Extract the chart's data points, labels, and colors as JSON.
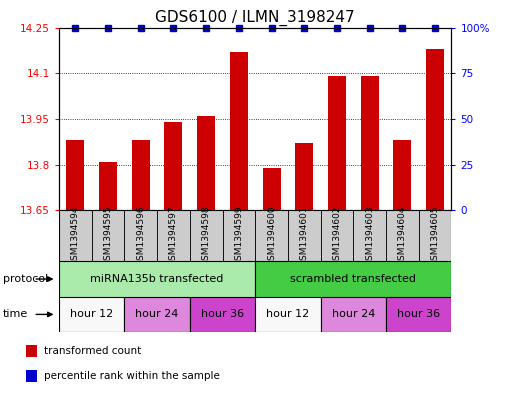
{
  "title": "GDS6100 / ILMN_3198247",
  "samples": [
    "GSM1394594",
    "GSM1394595",
    "GSM1394596",
    "GSM1394597",
    "GSM1394598",
    "GSM1394599",
    "GSM1394600",
    "GSM1394601",
    "GSM1394602",
    "GSM1394603",
    "GSM1394604",
    "GSM1394605"
  ],
  "bar_values": [
    13.88,
    13.81,
    13.88,
    13.94,
    13.96,
    14.17,
    13.79,
    13.87,
    14.09,
    14.09,
    13.88,
    14.18
  ],
  "ymin": 13.65,
  "ymax": 14.25,
  "yticks": [
    13.65,
    13.8,
    13.95,
    14.1,
    14.25
  ],
  "ytick_labels": [
    "13.65",
    "13.8",
    "13.95",
    "14.1",
    "14.25"
  ],
  "right_yticks": [
    0,
    25,
    50,
    75,
    100
  ],
  "right_ytick_labels": [
    "0",
    "25",
    "50",
    "75",
    "100%"
  ],
  "bar_color": "#cc0000",
  "percentile_color": "#0000cc",
  "sample_box_color": "#cccccc",
  "protocol_groups": [
    {
      "label": "miRNA135b transfected",
      "start": 0,
      "end": 6,
      "color": "#aaeaaa"
    },
    {
      "label": "scrambled transfected",
      "start": 6,
      "end": 12,
      "color": "#44cc44"
    }
  ],
  "time_groups": [
    {
      "label": "hour 12",
      "start": 0,
      "end": 2,
      "color": "#f8f8f8"
    },
    {
      "label": "hour 24",
      "start": 2,
      "end": 4,
      "color": "#dd88dd"
    },
    {
      "label": "hour 36",
      "start": 4,
      "end": 6,
      "color": "#cc44cc"
    },
    {
      "label": "hour 12",
      "start": 6,
      "end": 8,
      "color": "#f8f8f8"
    },
    {
      "label": "hour 24",
      "start": 8,
      "end": 10,
      "color": "#dd88dd"
    },
    {
      "label": "hour 36",
      "start": 10,
      "end": 12,
      "color": "#cc44cc"
    }
  ],
  "legend_items": [
    {
      "label": "transformed count",
      "color": "#cc0000"
    },
    {
      "label": "percentile rank within the sample",
      "color": "#0000cc"
    }
  ],
  "protocol_label": "protocol",
  "time_label": "time",
  "title_fontsize": 11,
  "tick_fontsize": 7.5,
  "row_label_fontsize": 8,
  "sample_fontsize": 6.5
}
